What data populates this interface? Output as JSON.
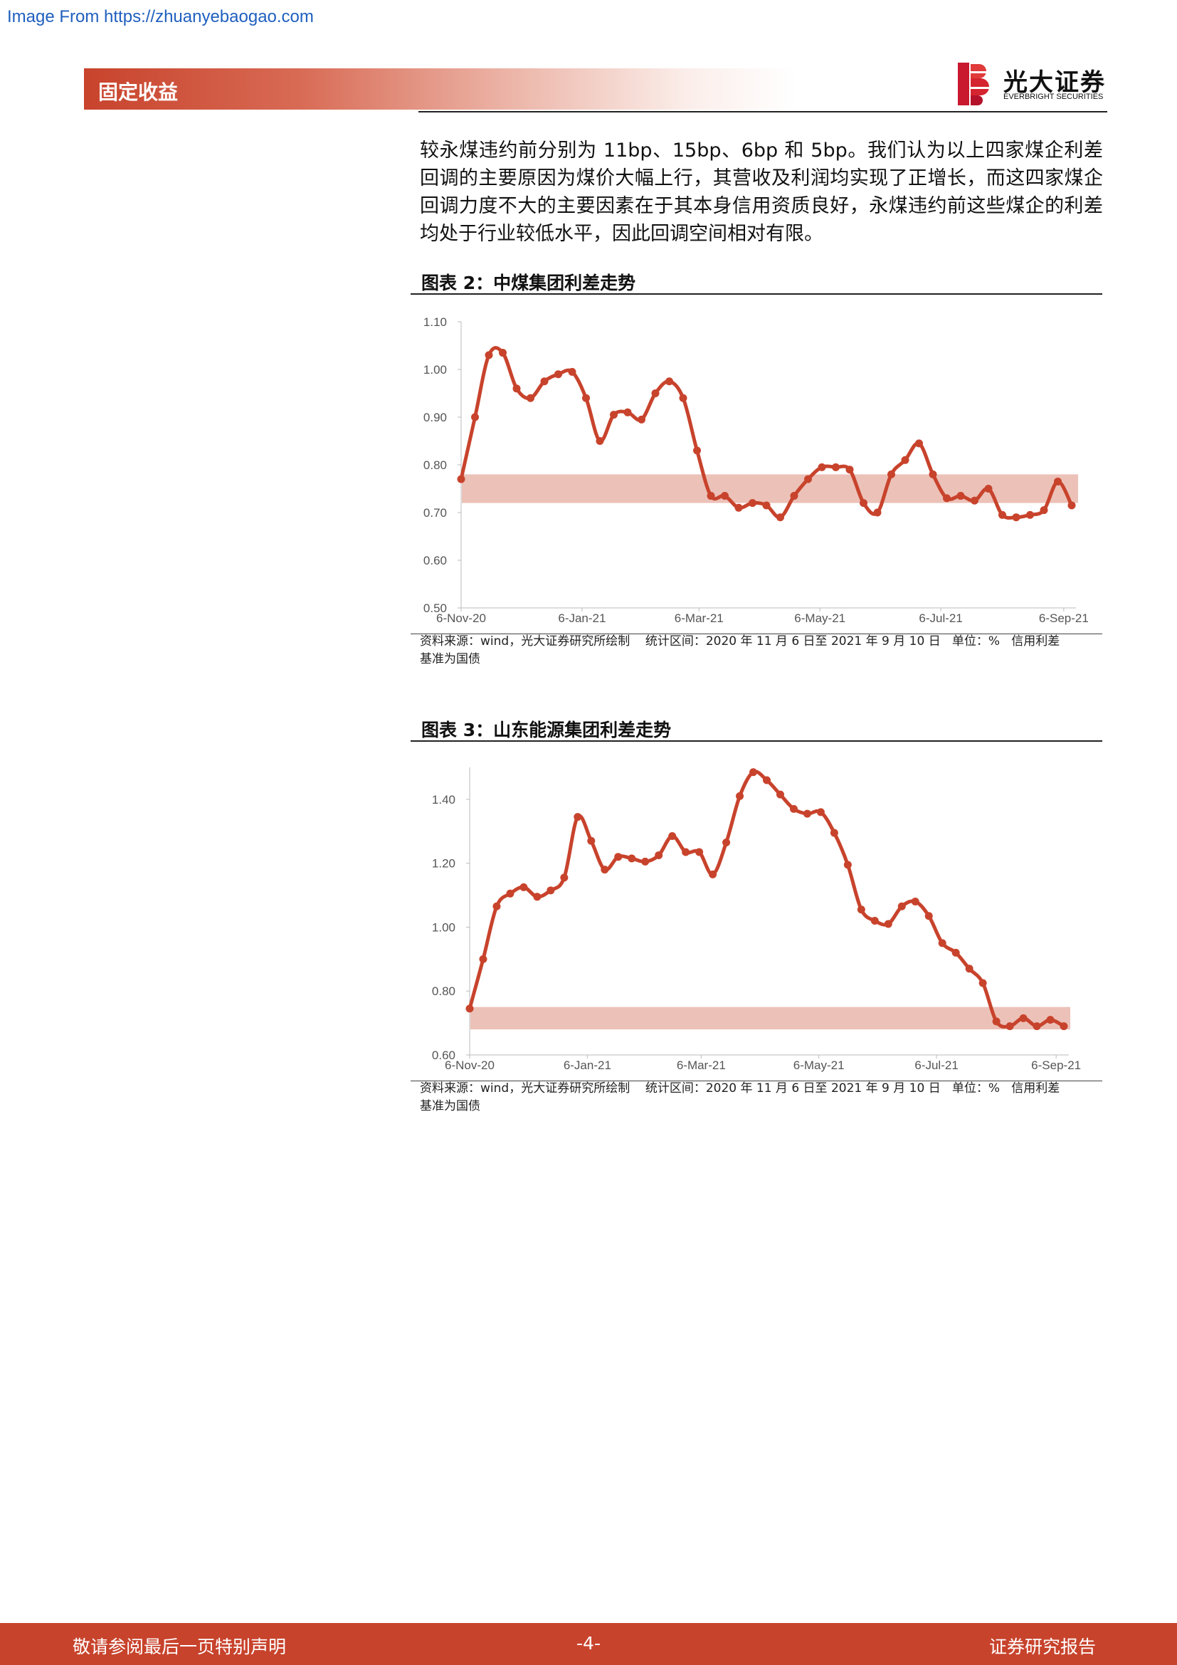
{
  "watermark": "Image From https://zhuanyebaogao.com",
  "header": {
    "section": "固定收益",
    "logo_cn": "光大证券",
    "logo_en": "EVERBRIGHT SECURITIES"
  },
  "body_text": "较永煤违约前分别为 11bp、15bp、6bp 和 5bp。我们认为以上四家煤企利差回调的主要原因为煤价大幅上行，其营收及利润均实现了正增长，而这四家煤企回调力度不大的主要因素在于其本身信用资质良好，永煤违约前这些煤企的利差均处于行业较低水平，因此回调空间相对有限。",
  "figures": [
    {
      "title": "图表 2：中煤集团利差走势",
      "source_a": "资料来源：wind，光大证券研究所绘制",
      "source_b": "统计区间：2020 年 11 月 6 日至 2021 年 9 月 10 日   单位：%   信用利差",
      "source_c": "基准为国债"
    },
    {
      "title": "图表 3：山东能源集团利差走势",
      "source_a": "资料来源：wind，光大证券研究所绘制",
      "source_b": "统计区间：2020 年 11 月 6 日至 2021 年 9 月 10 日   单位：%   信用利差",
      "source_c": "基准为国债"
    }
  ],
  "chart_data": [
    {
      "type": "line",
      "title": "图表 2：中煤集团利差走势",
      "x_tick_labels": [
        "6-Nov-20",
        "6-Jan-21",
        "6-Mar-21",
        "6-May-21",
        "6-Jul-21",
        "6-Sep-21"
      ],
      "y_tick_labels": [
        "0.50",
        "0.60",
        "0.70",
        "0.80",
        "0.90",
        "1.00",
        "1.10"
      ],
      "ylim": [
        0.5,
        1.1
      ],
      "x_start": "2020-11-06",
      "x_end": "2021-09-10",
      "band": [
        0.72,
        0.78
      ],
      "series_color": "#c8432c",
      "band_color": "#ecc1b8",
      "values": [
        0.77,
        0.9,
        1.03,
        1.035,
        0.96,
        0.94,
        0.975,
        0.99,
        0.995,
        0.94,
        0.85,
        0.905,
        0.91,
        0.895,
        0.95,
        0.975,
        0.94,
        0.83,
        0.735,
        0.735,
        0.71,
        0.72,
        0.715,
        0.69,
        0.735,
        0.77,
        0.795,
        0.795,
        0.79,
        0.72,
        0.7,
        0.78,
        0.81,
        0.845,
        0.78,
        0.73,
        0.735,
        0.725,
        0.75,
        0.695,
        0.69,
        0.695,
        0.705,
        0.765,
        0.715
      ]
    },
    {
      "type": "line",
      "title": "图表 3：山东能源集团利差走势",
      "x_tick_labels": [
        "6-Nov-20",
        "6-Jan-21",
        "6-Mar-21",
        "6-May-21",
        "6-Jul-21",
        "6-Sep-21"
      ],
      "y_tick_labels": [
        "0.60",
        "0.80",
        "1.00",
        "1.20",
        "1.40"
      ],
      "ylim": [
        0.6,
        1.5
      ],
      "x_start": "2020-11-06",
      "x_end": "2021-09-10",
      "band": [
        0.68,
        0.75
      ],
      "series_color": "#c8432c",
      "band_color": "#ecc1b8",
      "values": [
        0.745,
        0.9,
        1.065,
        1.105,
        1.125,
        1.095,
        1.115,
        1.155,
        1.345,
        1.27,
        1.18,
        1.22,
        1.215,
        1.205,
        1.225,
        1.285,
        1.235,
        1.235,
        1.165,
        1.265,
        1.41,
        1.485,
        1.46,
        1.415,
        1.37,
        1.355,
        1.36,
        1.295,
        1.195,
        1.055,
        1.02,
        1.01,
        1.065,
        1.08,
        1.035,
        0.95,
        0.92,
        0.87,
        0.825,
        0.705,
        0.69,
        0.715,
        0.69,
        0.71,
        0.69
      ]
    }
  ],
  "footer": {
    "left": "敬请参阅最后一页特别声明",
    "center": "-4-",
    "right": "证券研究报告"
  }
}
